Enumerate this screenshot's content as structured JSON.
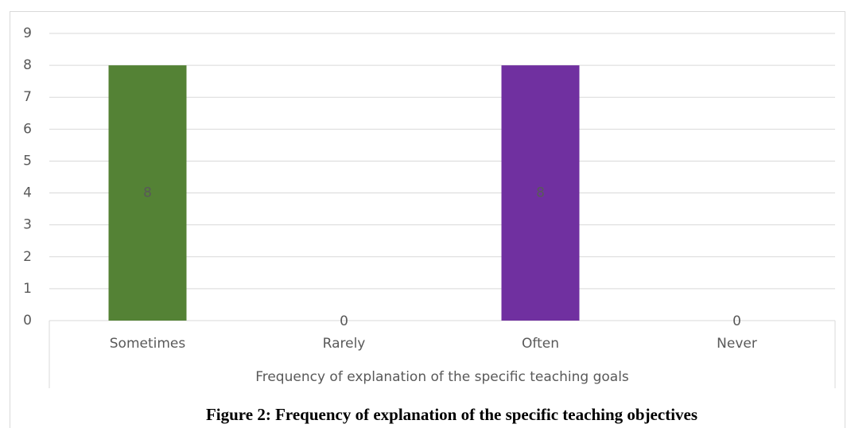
{
  "chart_data": {
    "type": "bar",
    "caption": "Figure 2: Frequency of explanation of the specific teaching objectives",
    "x_label": "Frequency of explanation of the specific teaching goals",
    "categories": [
      "Sometimes",
      "Rarely",
      "Often",
      "Never"
    ],
    "values": [
      8,
      0,
      8,
      0
    ],
    "colors": [
      "#548235",
      null,
      "#7030a0",
      null
    ],
    "ylim": [
      0,
      9
    ],
    "yticks": [
      0,
      1,
      2,
      3,
      4,
      5,
      6,
      7,
      8,
      9
    ],
    "grid": true
  }
}
